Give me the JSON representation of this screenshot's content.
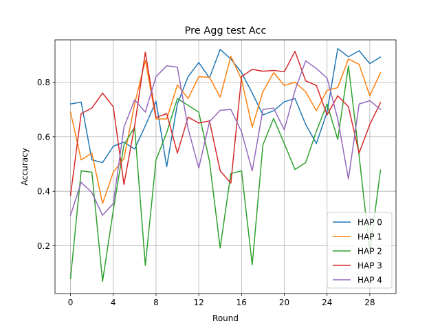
{
  "chart_data": {
    "type": "line",
    "title": "Pre Agg test Acc",
    "xlabel": "Round",
    "ylabel": "Accuracy",
    "xlim": [
      -1.45,
      30.45
    ],
    "ylim": [
      0.025,
      0.955
    ],
    "xticks": [
      0,
      4,
      8,
      12,
      16,
      20,
      24,
      28
    ],
    "yticks": [
      0.2,
      0.4,
      0.6,
      0.8
    ],
    "ytick_labels": [
      "0.2",
      "0.4",
      "0.6",
      "0.8"
    ],
    "grid": true,
    "legend_position": "lower-right",
    "x": [
      0,
      1,
      2,
      3,
      4,
      5,
      6,
      7,
      8,
      9,
      10,
      11,
      12,
      13,
      14,
      15,
      16,
      17,
      18,
      19,
      20,
      21,
      22,
      23,
      24,
      25,
      26,
      27,
      28,
      29
    ],
    "series": [
      {
        "name": "HAP 0",
        "color": "#1f77b4",
        "values": [
          0.72,
          0.727,
          0.515,
          0.505,
          0.565,
          0.58,
          0.555,
          0.64,
          0.73,
          0.49,
          0.72,
          0.82,
          0.872,
          0.815,
          0.92,
          0.885,
          0.835,
          0.76,
          0.68,
          0.695,
          0.728,
          0.74,
          0.645,
          0.575,
          0.69,
          0.923,
          0.893,
          0.915,
          0.868,
          0.892
        ]
      },
      {
        "name": "HAP 1",
        "color": "#ff7f0e",
        "values": [
          0.69,
          0.515,
          0.54,
          0.355,
          0.47,
          0.52,
          0.72,
          0.88,
          0.665,
          0.665,
          0.79,
          0.74,
          0.82,
          0.818,
          0.745,
          0.895,
          0.81,
          0.635,
          0.765,
          0.835,
          0.788,
          0.8,
          0.765,
          0.695,
          0.77,
          0.78,
          0.885,
          0.865,
          0.75,
          0.835
        ]
      },
      {
        "name": "HAP 2",
        "color": "#2ca02c",
        "values": [
          0.08,
          0.475,
          0.47,
          0.07,
          0.33,
          0.57,
          0.635,
          0.128,
          0.515,
          0.615,
          0.74,
          0.715,
          0.69,
          0.51,
          0.192,
          0.465,
          0.475,
          0.13,
          0.57,
          0.667,
          0.575,
          0.48,
          0.505,
          0.62,
          0.72,
          0.59,
          0.86,
          0.53,
          0.178,
          0.478
        ]
      },
      {
        "name": "HAP 3",
        "color": "#d62728",
        "values": [
          0.385,
          0.685,
          0.705,
          0.76,
          0.71,
          0.425,
          0.64,
          0.91,
          0.67,
          0.685,
          0.54,
          0.672,
          0.65,
          0.658,
          0.475,
          0.43,
          0.82,
          0.847,
          0.84,
          0.843,
          0.838,
          0.913,
          0.805,
          0.788,
          0.68,
          0.75,
          0.71,
          0.54,
          0.645,
          0.725
        ]
      },
      {
        "name": "HAP 4",
        "color": "#9467bd",
        "values": [
          0.312,
          0.433,
          0.395,
          0.312,
          0.355,
          0.635,
          0.735,
          0.69,
          0.82,
          0.86,
          0.855,
          0.63,
          0.485,
          0.655,
          0.697,
          0.7,
          0.618,
          0.475,
          0.7,
          0.705,
          0.625,
          0.77,
          0.878,
          0.85,
          0.815,
          0.665,
          0.445,
          0.72,
          0.732,
          0.7
        ]
      }
    ]
  }
}
